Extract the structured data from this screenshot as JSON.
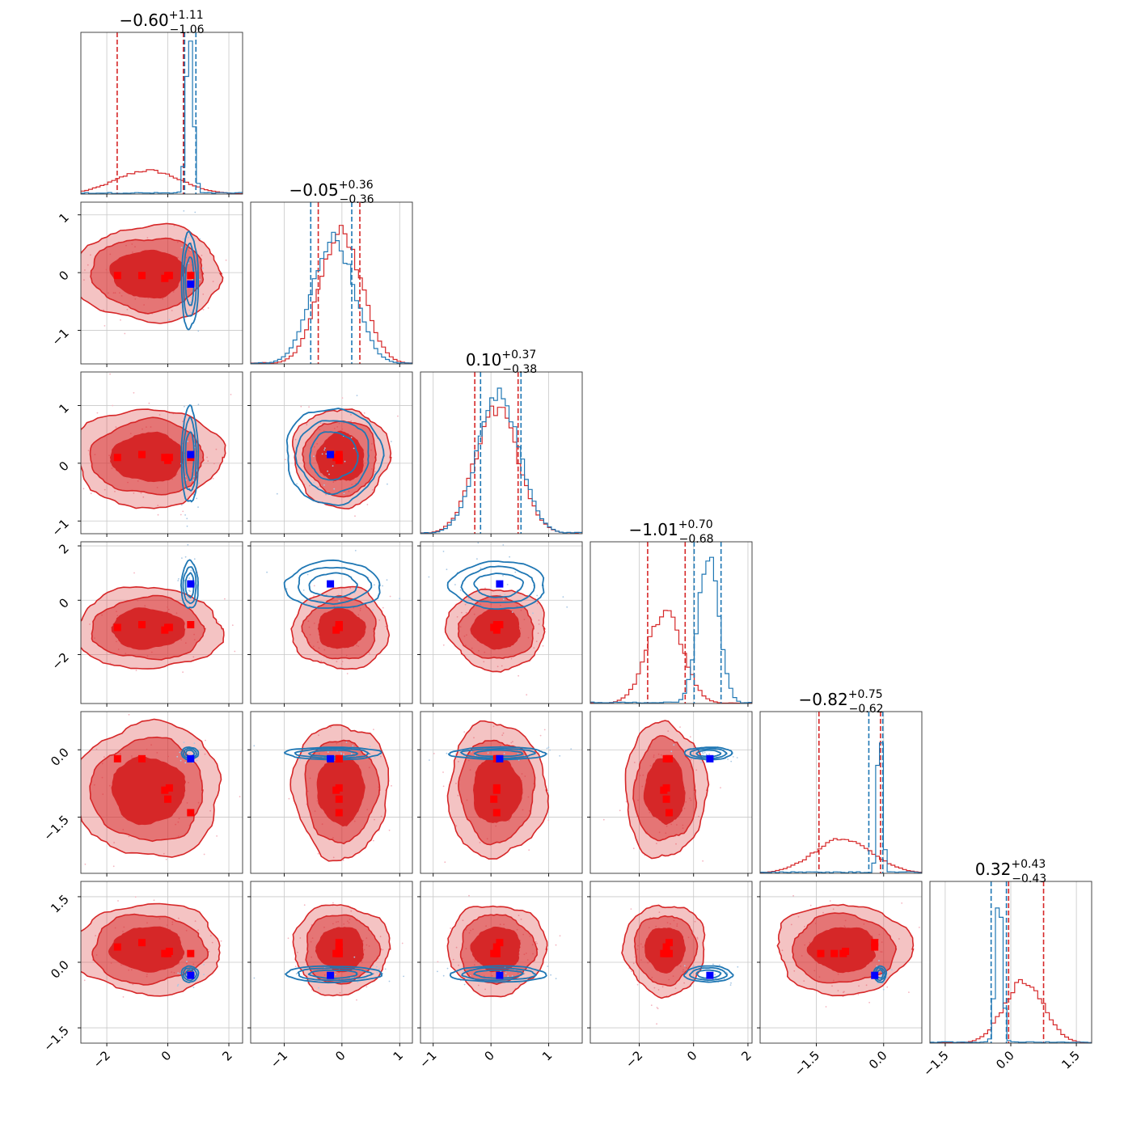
{
  "chart_data": {
    "type": "corner",
    "n_params": 6,
    "series": [
      {
        "color": "#d62728",
        "marker_color": "#ff0000",
        "style": "filled-contours"
      },
      {
        "color": "#1f77b4",
        "marker_color": "#0000ff",
        "style": "line-contours"
      }
    ],
    "params": [
      {
        "xlim": [
          -2.85,
          2.45
        ],
        "ticks": [
          -2,
          0,
          2
        ],
        "tick_labels": [
          "−2",
          "0",
          "2"
        ],
        "title_main": "−0.60",
        "title_plus": "+1.11",
        "title_minus": "−1.06",
        "red": {
          "mean": -0.65,
          "sd": 1.05,
          "quantiles": [
            -1.66,
            0.51
          ]
        },
        "blue": {
          "mean": 0.72,
          "sd": 0.12,
          "quantiles": [
            0.55,
            0.92
          ]
        },
        "red_peak": 0.15,
        "blue_peak": 1.0
      },
      {
        "xlim": [
          -1.58,
          1.22
        ],
        "ticks": [
          -1,
          0,
          1
        ],
        "tick_labels": [
          "−1",
          "0",
          "1"
        ],
        "title_main": "−0.05",
        "title_plus": "+0.36",
        "title_minus": "−0.36",
        "red": {
          "mean": -0.02,
          "sd": 0.36,
          "quantiles": [
            -0.41,
            0.31
          ]
        },
        "blue": {
          "mean": -0.15,
          "sd": 0.36,
          "quantiles": [
            -0.54,
            0.17
          ]
        },
        "red_peak": 0.85,
        "blue_peak": 0.8
      },
      {
        "xlim": [
          -1.22,
          1.58
        ],
        "ticks": [
          -1,
          0,
          1
        ],
        "tick_labels": [
          "−1",
          "0",
          "1"
        ],
        "title_main": "0.10",
        "title_plus": "+0.37",
        "title_minus": "−0.38",
        "red": {
          "mean": 0.1,
          "sd": 0.37,
          "quantiles": [
            -0.28,
            0.47
          ]
        },
        "blue": {
          "mean": 0.13,
          "sd": 0.36,
          "quantiles": [
            -0.18,
            0.52
          ]
        },
        "red_peak": 0.8,
        "blue_peak": 0.88
      },
      {
        "xlim": [
          -3.8,
          2.15
        ],
        "ticks": [
          -2,
          0,
          2
        ],
        "tick_labels": [
          "−2",
          "0",
          "2"
        ],
        "title_main": "−1.01",
        "title_plus": "+0.70",
        "title_minus": "−0.68",
        "red": {
          "mean": -1.05,
          "sd": 0.65,
          "quantiles": [
            -1.69,
            -0.31
          ]
        },
        "blue": {
          "mean": 0.55,
          "sd": 0.38,
          "quantiles": [
            0.02,
            1.01
          ]
        },
        "red_peak": 0.58,
        "blue_peak": 0.95
      },
      {
        "xlim": [
          -2.75,
          0.85
        ],
        "ticks": [
          -1.5,
          0.0
        ],
        "tick_labels": [
          "−1.5",
          "0.0"
        ],
        "title_main": "−0.82",
        "title_plus": "+0.75",
        "title_minus": "−0.62",
        "red": {
          "mean": -0.9,
          "sd": 0.65,
          "quantiles": [
            -1.44,
            -0.07
          ]
        },
        "blue": {
          "mean": -0.08,
          "sd": 0.06,
          "quantiles": [
            -0.33,
            -0.02
          ]
        },
        "red_peak": 0.22,
        "blue_peak": 1.0
      },
      {
        "xlim": [
          -1.85,
          1.85
        ],
        "ticks": [
          -1.5,
          0.0,
          1.5
        ],
        "tick_labels": [
          "−1.5",
          "0.0",
          "1.5"
        ],
        "title_main": "0.32",
        "title_plus": "+0.43",
        "title_minus": "−0.43",
        "red": {
          "mean": 0.3,
          "sd": 0.45,
          "quantiles": [
            -0.05,
            0.75
          ]
        },
        "blue": {
          "mean": -0.27,
          "sd": 0.08,
          "quantiles": [
            -0.45,
            -0.1
          ]
        },
        "red_peak": 0.4,
        "blue_peak": 0.93
      }
    ],
    "markers": {
      "red": [
        [
          -1.65,
          -0.05,
          0.1,
          -1.0,
          -0.2,
          0.35
        ],
        [
          -0.85,
          -0.05,
          0.15,
          -0.9,
          -0.2,
          0.45
        ],
        [
          0.0,
          -0.05,
          0.05,
          -1.0,
          -1.1,
          0.2
        ],
        [
          0.75,
          -0.05,
          0.1,
          -0.9,
          -1.4,
          0.2
        ],
        [
          -0.1,
          -0.1,
          0.1,
          -1.1,
          -0.9,
          0.2
        ],
        [
          0.05,
          -0.05,
          0.1,
          -1.0,
          -0.85,
          0.25
        ]
      ],
      "blue": [
        0.75,
        -0.2,
        0.15,
        0.6,
        -0.2,
        -0.3
      ]
    }
  }
}
